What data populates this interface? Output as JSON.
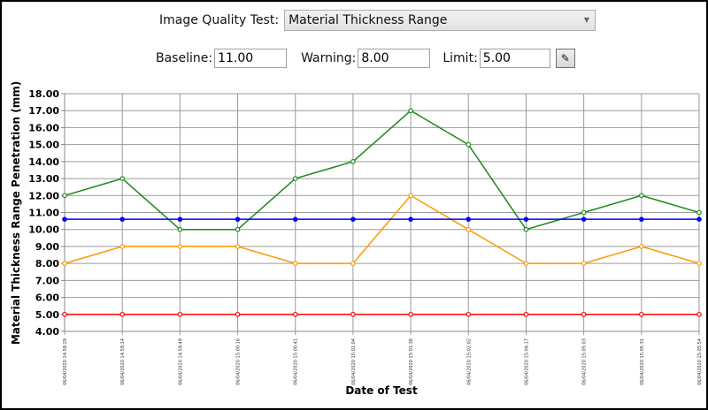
{
  "controls": {
    "test_label": "Image Quality Test:",
    "test_value": "Material Thickness Range",
    "baseline_label": "Baseline:",
    "baseline_value": "11.00",
    "warning_label": "Warning:",
    "warning_value": "8.00",
    "limit_label": "Limit:",
    "limit_value": "5.00",
    "edit_icon": "pencil-icon"
  },
  "chart_data": {
    "type": "line",
    "xlabel": "Date of Test",
    "ylabel": "Material Thickness Range Penetration (mm)",
    "ylim": [
      4,
      18
    ],
    "ytick_step": 1,
    "grid": true,
    "categories": [
      "06/04/2020 14:58:29",
      "06/04/2020 14:59:14",
      "06/04/2020 14:59:49",
      "06/04/2020 15:00:16",
      "06/04/2020 15:00:41",
      "06/04/2020 15:01:04",
      "06/04/2020 15:01:38",
      "06/04/2020 15:02:02",
      "06/04/2020 15:04:17",
      "06/04/2020 15:05:03",
      "06/04/2020 15:05:31",
      "06/04/2020 15:05:54"
    ],
    "series": [
      {
        "color": "#1a8a1a",
        "values": [
          12,
          13,
          10,
          10,
          13,
          14,
          17,
          15,
          10,
          11,
          12,
          11
        ]
      },
      {
        "color": "#ff9900",
        "values": [
          8,
          9,
          9,
          9,
          8,
          8,
          12,
          10,
          8,
          8,
          9,
          8
        ]
      },
      {
        "color": "#0000ff",
        "values": [
          10.6,
          10.6,
          10.6,
          10.6,
          10.6,
          10.6,
          10.6,
          10.6,
          10.6,
          10.6,
          10.6,
          10.6
        ]
      },
      {
        "color": "#ff0000",
        "values": [
          5,
          5,
          5,
          5,
          5,
          5,
          5,
          5,
          5,
          5,
          5,
          5
        ]
      }
    ]
  }
}
